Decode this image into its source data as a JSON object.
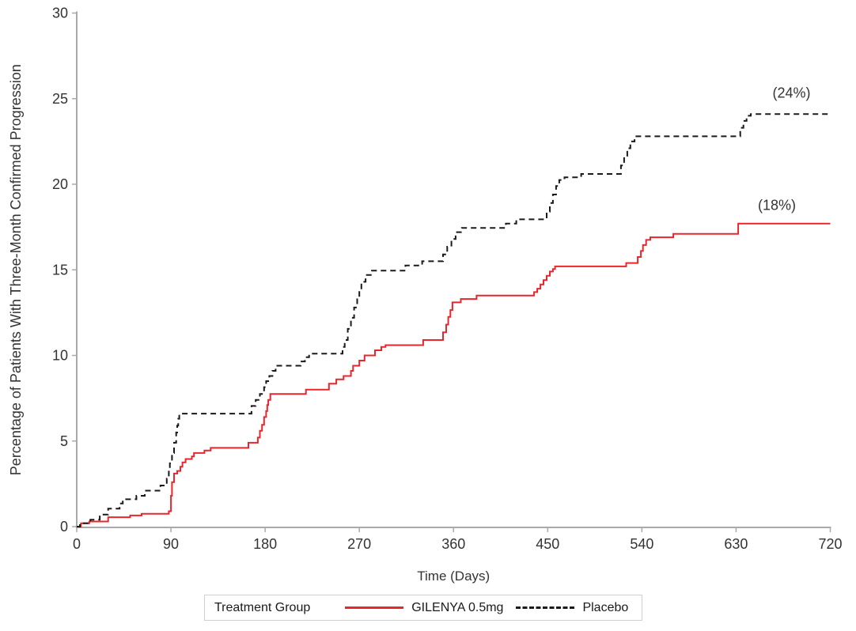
{
  "chart_data": {
    "type": "line",
    "subtype": "step-kaplan-meier",
    "title": "",
    "xlabel": "Time (Days)",
    "ylabel": "Percentage of Patients With Three-Month Confirmed Progression",
    "xlim": [
      0,
      720
    ],
    "ylim": [
      0,
      30
    ],
    "x_ticks": [
      0,
      90,
      180,
      270,
      360,
      450,
      540,
      630,
      720
    ],
    "y_ticks": [
      0,
      5,
      10,
      15,
      20,
      25,
      30
    ],
    "grid": false,
    "legend_position": "bottom",
    "series": [
      {
        "name": "GILENYA 0.5mg",
        "color": "#e8262c",
        "dash": "solid",
        "end_label": "(18%)",
        "final_value_pct": 17.7,
        "points": [
          [
            0,
            0
          ],
          [
            4,
            0.2
          ],
          [
            12,
            0.3
          ],
          [
            30,
            0.55
          ],
          [
            51,
            0.65
          ],
          [
            62,
            0.75
          ],
          [
            88,
            0.9
          ],
          [
            90,
            1.8
          ],
          [
            91,
            2.6
          ],
          [
            93,
            3.1
          ],
          [
            96,
            3.25
          ],
          [
            99,
            3.5
          ],
          [
            101,
            3.75
          ],
          [
            104,
            3.95
          ],
          [
            110,
            4.1
          ],
          [
            112,
            4.3
          ],
          [
            122,
            4.45
          ],
          [
            128,
            4.6
          ],
          [
            164,
            4.9
          ],
          [
            173,
            5.2
          ],
          [
            175,
            5.6
          ],
          [
            177,
            5.95
          ],
          [
            179,
            6.4
          ],
          [
            181,
            6.75
          ],
          [
            182,
            7.1
          ],
          [
            183,
            7.4
          ],
          [
            185,
            7.75
          ],
          [
            219,
            8.0
          ],
          [
            241,
            8.35
          ],
          [
            248,
            8.6
          ],
          [
            255,
            8.8
          ],
          [
            262,
            9.1
          ],
          [
            264,
            9.4
          ],
          [
            270,
            9.7
          ],
          [
            275,
            10.0
          ],
          [
            285,
            10.3
          ],
          [
            291,
            10.5
          ],
          [
            295,
            10.6
          ],
          [
            331,
            10.9
          ],
          [
            350,
            11.35
          ],
          [
            353,
            11.8
          ],
          [
            355,
            12.25
          ],
          [
            357,
            12.65
          ],
          [
            359,
            13.1
          ],
          [
            367,
            13.3
          ],
          [
            382,
            13.5
          ],
          [
            437,
            13.7
          ],
          [
            440,
            13.9
          ],
          [
            443,
            14.15
          ],
          [
            446,
            14.4
          ],
          [
            449,
            14.65
          ],
          [
            452,
            14.9
          ],
          [
            455,
            15.05
          ],
          [
            457,
            15.2
          ],
          [
            525,
            15.4
          ],
          [
            536,
            15.75
          ],
          [
            539,
            16.1
          ],
          [
            541,
            16.45
          ],
          [
            544,
            16.75
          ],
          [
            548,
            16.9
          ],
          [
            570,
            17.1
          ],
          [
            632,
            17.7
          ],
          [
            720,
            17.7
          ]
        ]
      },
      {
        "name": "Placebo",
        "color": "#1a1a1a",
        "dash": "dashed",
        "end_label": "(24%)",
        "final_value_pct": 24.1,
        "points": [
          [
            0,
            0
          ],
          [
            3,
            0.2
          ],
          [
            13,
            0.4
          ],
          [
            22,
            0.7
          ],
          [
            30,
            1.05
          ],
          [
            41,
            1.35
          ],
          [
            44,
            1.6
          ],
          [
            57,
            1.8
          ],
          [
            65,
            2.1
          ],
          [
            80,
            2.4
          ],
          [
            86,
            2.8
          ],
          [
            88,
            3.3
          ],
          [
            89,
            3.7
          ],
          [
            91,
            4.3
          ],
          [
            93,
            4.9
          ],
          [
            95,
            5.5
          ],
          [
            96,
            5.9
          ],
          [
            97,
            6.3
          ],
          [
            98,
            6.6
          ],
          [
            167,
            7.05
          ],
          [
            171,
            7.4
          ],
          [
            175,
            7.75
          ],
          [
            179,
            8.15
          ],
          [
            181,
            8.5
          ],
          [
            184,
            8.8
          ],
          [
            187,
            9.1
          ],
          [
            190,
            9.4
          ],
          [
            214,
            9.65
          ],
          [
            218,
            9.9
          ],
          [
            222,
            10.1
          ],
          [
            254,
            10.5
          ],
          [
            256,
            10.9
          ],
          [
            259,
            11.55
          ],
          [
            262,
            12.2
          ],
          [
            265,
            12.8
          ],
          [
            268,
            13.35
          ],
          [
            270,
            13.8
          ],
          [
            272,
            14.3
          ],
          [
            276,
            14.7
          ],
          [
            282,
            14.95
          ],
          [
            314,
            15.25
          ],
          [
            330,
            15.5
          ],
          [
            350,
            15.9
          ],
          [
            354,
            16.35
          ],
          [
            358,
            16.8
          ],
          [
            362,
            17.2
          ],
          [
            368,
            17.45
          ],
          [
            410,
            17.7
          ],
          [
            420,
            17.95
          ],
          [
            449,
            18.4
          ],
          [
            452,
            18.9
          ],
          [
            455,
            19.4
          ],
          [
            458,
            19.9
          ],
          [
            461,
            20.25
          ],
          [
            466,
            20.4
          ],
          [
            482,
            20.6
          ],
          [
            520,
            21.1
          ],
          [
            523,
            21.6
          ],
          [
            526,
            22.1
          ],
          [
            529,
            22.5
          ],
          [
            533,
            22.8
          ],
          [
            634,
            23.3
          ],
          [
            637,
            23.7
          ],
          [
            640,
            24.0
          ],
          [
            644,
            24.1
          ],
          [
            720,
            24.1
          ]
        ]
      }
    ],
    "annotations": [
      {
        "text": "(24%)",
        "day": 683,
        "pct": 25.05,
        "series": "Placebo"
      },
      {
        "text": "(18%)",
        "day": 669,
        "pct": 18.5,
        "series": "GILENYA 0.5mg"
      }
    ]
  },
  "legend": {
    "title": "Treatment Group",
    "entries": [
      {
        "label": "GILENYA 0.5mg",
        "style": "solid",
        "color": "#e8262c"
      },
      {
        "label": "Placebo",
        "style": "dashed",
        "color": "#1a1a1a"
      }
    ]
  },
  "colors": {
    "axis": "#a9a9a9",
    "tick_text": "#333333",
    "annotation_text": "#333333",
    "legend_border": "#cfcfcf",
    "background": "#ffffff"
  }
}
